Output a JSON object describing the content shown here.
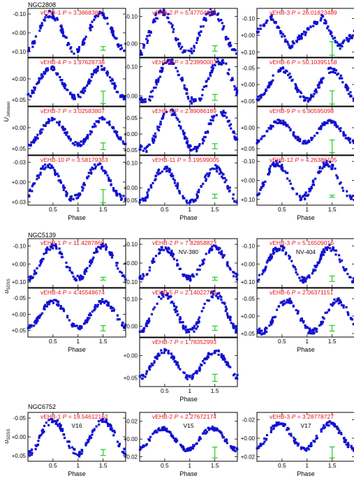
{
  "figure": {
    "axis_style": {
      "frame_color": "#000000",
      "point_color": "#1010d0",
      "label_color": "#e8141c",
      "errorbar_color": "#22cc22"
    },
    "xlabel": "Phase",
    "x_ticks": [
      "0.5",
      "1",
      "1.5"
    ]
  },
  "chart_data": [
    {
      "cluster": "NGC2808",
      "ylabel": "U_Johnson",
      "panels": [
        {
          "star": "vEHB-1",
          "period": "3.3868388",
          "yticks": [
            "-0.10",
            "+0.00",
            "+0.10"
          ],
          "ylim": [
            -0.13,
            0.13
          ],
          "amp": 0.1,
          "mid": 0.0,
          "peak": 0.45,
          "shape": "sin",
          "err": 0.01,
          "label": ""
        },
        {
          "star": "vEHB-2",
          "period": "5.47704961",
          "yticks": [
            "-0.10",
            "+0.00"
          ],
          "ylim": [
            -0.13,
            0.05
          ],
          "amp": 0.08,
          "mid": -0.04,
          "peak": 0.45,
          "shape": "sin",
          "err": 0.01,
          "label": ""
        },
        {
          "star": "vEHB-3",
          "period": "26.01823489",
          "yticks": [
            "-0.10",
            "+0.00",
            "+0.10"
          ],
          "ylim": [
            -0.16,
            0.13
          ],
          "amp": 0.09,
          "mid": -0.02,
          "peak": 0.3,
          "shape": "saw",
          "err": 0.04,
          "label": ""
        },
        {
          "star": "vEHB-4",
          "period": "1.97628738",
          "yticks": [
            "+0.00",
            "+0.05"
          ],
          "ylim": [
            -0.05,
            0.065
          ],
          "amp": 0.035,
          "mid": 0.01,
          "peak": 0.45,
          "shape": "sin",
          "err": 0.015,
          "label": ""
        },
        {
          "star": "vEHB-5",
          "period": "3.23990003",
          "yticks": [
            "-0.10",
            "+0.00"
          ],
          "ylim": [
            -0.13,
            0.035
          ],
          "amp": 0.07,
          "mid": -0.05,
          "peak": 0.6,
          "shape": "sin",
          "err": 0.01,
          "label": ""
        },
        {
          "star": "vEHB-6",
          "period": "50.10395158",
          "yticks": [
            "-0.05",
            "+0.00",
            "+0.05"
          ],
          "ylim": [
            -0.08,
            0.065
          ],
          "amp": 0.045,
          "mid": 0.0,
          "peak": 0.5,
          "shape": "sin",
          "err": 0.02,
          "label": ""
        },
        {
          "star": "vEHB-7",
          "period": "3.02583807",
          "yticks": [
            "+0.00",
            "+0.05"
          ],
          "ylim": [
            -0.05,
            0.065
          ],
          "amp": 0.03,
          "mid": 0.01,
          "peak": 0.5,
          "shape": "sin",
          "err": 0.008,
          "label": ""
        },
        {
          "star": "vEHB-8",
          "period": "2.89086189",
          "yticks": [
            "-0.05",
            "+0.00",
            "+0.05"
          ],
          "ylim": [
            -0.085,
            0.065
          ],
          "amp": 0.06,
          "mid": -0.01,
          "peak": 0.6,
          "shape": "sin",
          "err": 0.008,
          "label": ""
        },
        {
          "star": "vEHB-9",
          "period": "6.90595098",
          "yticks": [
            "+0.00",
            "+0.05"
          ],
          "ylim": [
            -0.05,
            0.065
          ],
          "amp": 0.025,
          "mid": 0.01,
          "peak": 0.45,
          "shape": "sin",
          "err": 0.015,
          "label": ""
        },
        {
          "star": "vEHB-10",
          "period": "3.58179363",
          "yticks": [
            "-0.03",
            "+0.00",
            "+0.03"
          ],
          "ylim": [
            -0.04,
            0.035
          ],
          "amp": 0.025,
          "mid": 0.0,
          "peak": 0.4,
          "shape": "sin",
          "err": 0.01,
          "label": ""
        },
        {
          "star": "vEHB-11",
          "period": "3.19599005",
          "yticks": [
            "-0.10",
            "+0.00",
            "+0.05"
          ],
          "ylim": [
            -0.13,
            0.07
          ],
          "amp": 0.07,
          "mid": -0.01,
          "peak": 0.5,
          "shape": "sin",
          "err": 0.008,
          "label": ""
        },
        {
          "star": "vEHB-12",
          "period": "4.26386105",
          "yticks": [
            "-0.10",
            "+0.00",
            "+0.10"
          ],
          "ylim": [
            -0.13,
            0.13
          ],
          "amp": 0.09,
          "mid": 0.0,
          "peak": 0.4,
          "shape": "sin",
          "err": 0.002,
          "label": ""
        }
      ]
    },
    {
      "cluster": "NGC5139",
      "ylabel": "u_SDSS",
      "panels": [
        {
          "star": "vEHB-1",
          "period": "11.4287868",
          "yticks": [
            "-0.10",
            "+0.00",
            "+0.10"
          ],
          "ylim": [
            -0.14,
            0.13
          ],
          "amp": 0.09,
          "mid": -0.01,
          "peak": 0.5,
          "shape": "sin",
          "err": 0.008,
          "label": ""
        },
        {
          "star": "vEHB-2",
          "period": "7.82858823",
          "yticks": [
            "-0.10",
            "+0.00",
            "+0.10"
          ],
          "ylim": [
            -0.13,
            0.13
          ],
          "amp": 0.08,
          "mid": 0.0,
          "peak": 0.5,
          "shape": "sin",
          "err": 0.008,
          "label": "NV-380"
        },
        {
          "star": "vEHB-3",
          "period": "5.16509016",
          "yticks": [
            "-0.10",
            "+0.00",
            "+0.10"
          ],
          "ylim": [
            -0.14,
            0.13
          ],
          "amp": 0.09,
          "mid": 0.0,
          "peak": 0.45,
          "shape": "sin",
          "err": 0.015,
          "label": "NV-404"
        },
        {
          "star": "vEHB-4",
          "period": "4.45548674",
          "yticks": [
            "-0.05",
            "+0.00",
            "+0.05"
          ],
          "ylim": [
            -0.08,
            0.07
          ],
          "amp": 0.04,
          "mid": 0.0,
          "peak": 0.5,
          "shape": "sin",
          "err": 0.008,
          "label": ""
        },
        {
          "star": "vEHB-5",
          "period": "2.14022724",
          "yticks": [
            "-0.10",
            "+0.00"
          ],
          "ylim": [
            -0.14,
            0.04
          ],
          "amp": 0.07,
          "mid": -0.05,
          "peak": 0.5,
          "shape": "sin",
          "err": 0.008,
          "label": ""
        },
        {
          "star": "vEHB-6",
          "period": "2.06371151",
          "yticks": [
            "-0.05",
            "+0.00",
            "+0.05"
          ],
          "ylim": [
            -0.08,
            0.06
          ],
          "amp": 0.045,
          "mid": 0.0,
          "peak": 0.6,
          "shape": "sin",
          "err": 0.008,
          "label": ""
        },
        {
          "star": "vEHB-7",
          "period": "1.78352993",
          "yticks": [
            "+0.00",
            "+0.05"
          ],
          "ylim": [
            -0.04,
            0.07
          ],
          "amp": 0.03,
          "mid": 0.02,
          "peak": 0.5,
          "shape": "sin",
          "err": 0.008,
          "label": ""
        }
      ]
    },
    {
      "cluster": "NGC6752",
      "ylabel": "u_SDSS",
      "panels": [
        {
          "star": "vEHB-1",
          "period": "19.54612162",
          "yticks": [
            "-0.05",
            "+0.00",
            "+0.05"
          ],
          "ylim": [
            -0.065,
            0.065
          ],
          "amp": 0.045,
          "mid": 0.0,
          "peak": 0.5,
          "shape": "sin",
          "err": 0.008,
          "label": "V16"
        },
        {
          "star": "vEHB-2",
          "period": "2.27672174",
          "yticks": [
            "-0.02",
            "+0.00",
            "+0.02"
          ],
          "ylim": [
            -0.03,
            0.025
          ],
          "amp": 0.012,
          "mid": 0.0,
          "peak": 0.45,
          "shape": "sin",
          "err": 0.006,
          "label": "V15"
        },
        {
          "star": "vEHB-3",
          "period": "3.28778727",
          "yticks": [
            "-0.02",
            "+0.00",
            "+0.02"
          ],
          "ylim": [
            -0.028,
            0.025
          ],
          "amp": 0.014,
          "mid": -0.002,
          "peak": 0.45,
          "shape": "sin",
          "err": 0.006,
          "label": "V17"
        }
      ]
    }
  ]
}
